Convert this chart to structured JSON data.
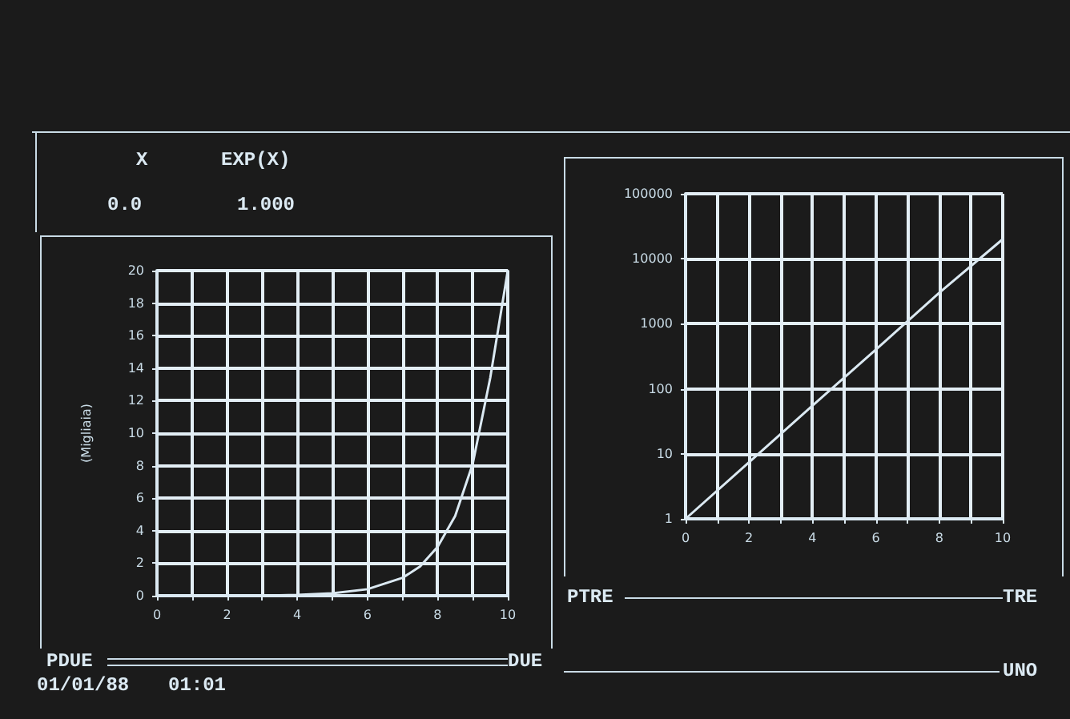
{
  "chart_data": [
    {
      "type": "other",
      "annotations": [
        "X",
        "EXP(X)",
        "0.0",
        "1.000"
      ]
    },
    {
      "type": "line",
      "ylabel": "(Migliaia)",
      "color": "#dbe9f2",
      "grid": true,
      "marker": "none",
      "x": [
        0,
        1,
        2,
        3,
        4,
        5,
        6,
        7,
        7.5,
        8,
        8.5,
        9,
        9.5,
        10
      ],
      "values": [
        0,
        0,
        0,
        0,
        0.05,
        0.15,
        0.4,
        1.1,
        1.8,
        3,
        4.9,
        8.1,
        13.4,
        20
      ],
      "xlim": [
        0,
        10
      ],
      "xticks": [
        0,
        {
          "value": 1,
          "label": null
        },
        2,
        {
          "value": 3,
          "label": null
        },
        4,
        {
          "value": 5,
          "label": null
        },
        6,
        {
          "value": 7,
          "label": null
        },
        8,
        {
          "value": 9,
          "label": null
        },
        10
      ],
      "ylim": [
        0,
        20
      ],
      "yticks": [
        0,
        2,
        4,
        6,
        8,
        10,
        12,
        14,
        16,
        18,
        20
      ],
      "annotations": [
        "PDUE",
        "DUE",
        "01/01/88",
        "01:01"
      ]
    },
    {
      "type": "line",
      "color": "#dbe9f2",
      "grid": true,
      "marker": "none",
      "log": "y",
      "x": [
        0,
        2,
        4,
        6,
        8,
        10
      ],
      "values": [
        1,
        7.4,
        55,
        400,
        3000,
        20000
      ],
      "xlim": [
        0,
        10
      ],
      "xticks": [
        0,
        {
          "value": 1,
          "label": null
        },
        2,
        {
          "value": 3,
          "label": null
        },
        4,
        {
          "value": 5,
          "label": null
        },
        6,
        {
          "value": 7,
          "label": null
        },
        8,
        {
          "value": 9,
          "label": null
        },
        10
      ],
      "ylim": [
        1,
        100000
      ],
      "yticks": [
        1,
        10,
        100,
        1000,
        10000,
        100000
      ],
      "annotations": [
        "PTRE",
        "TRE",
        "UNO"
      ]
    }
  ]
}
